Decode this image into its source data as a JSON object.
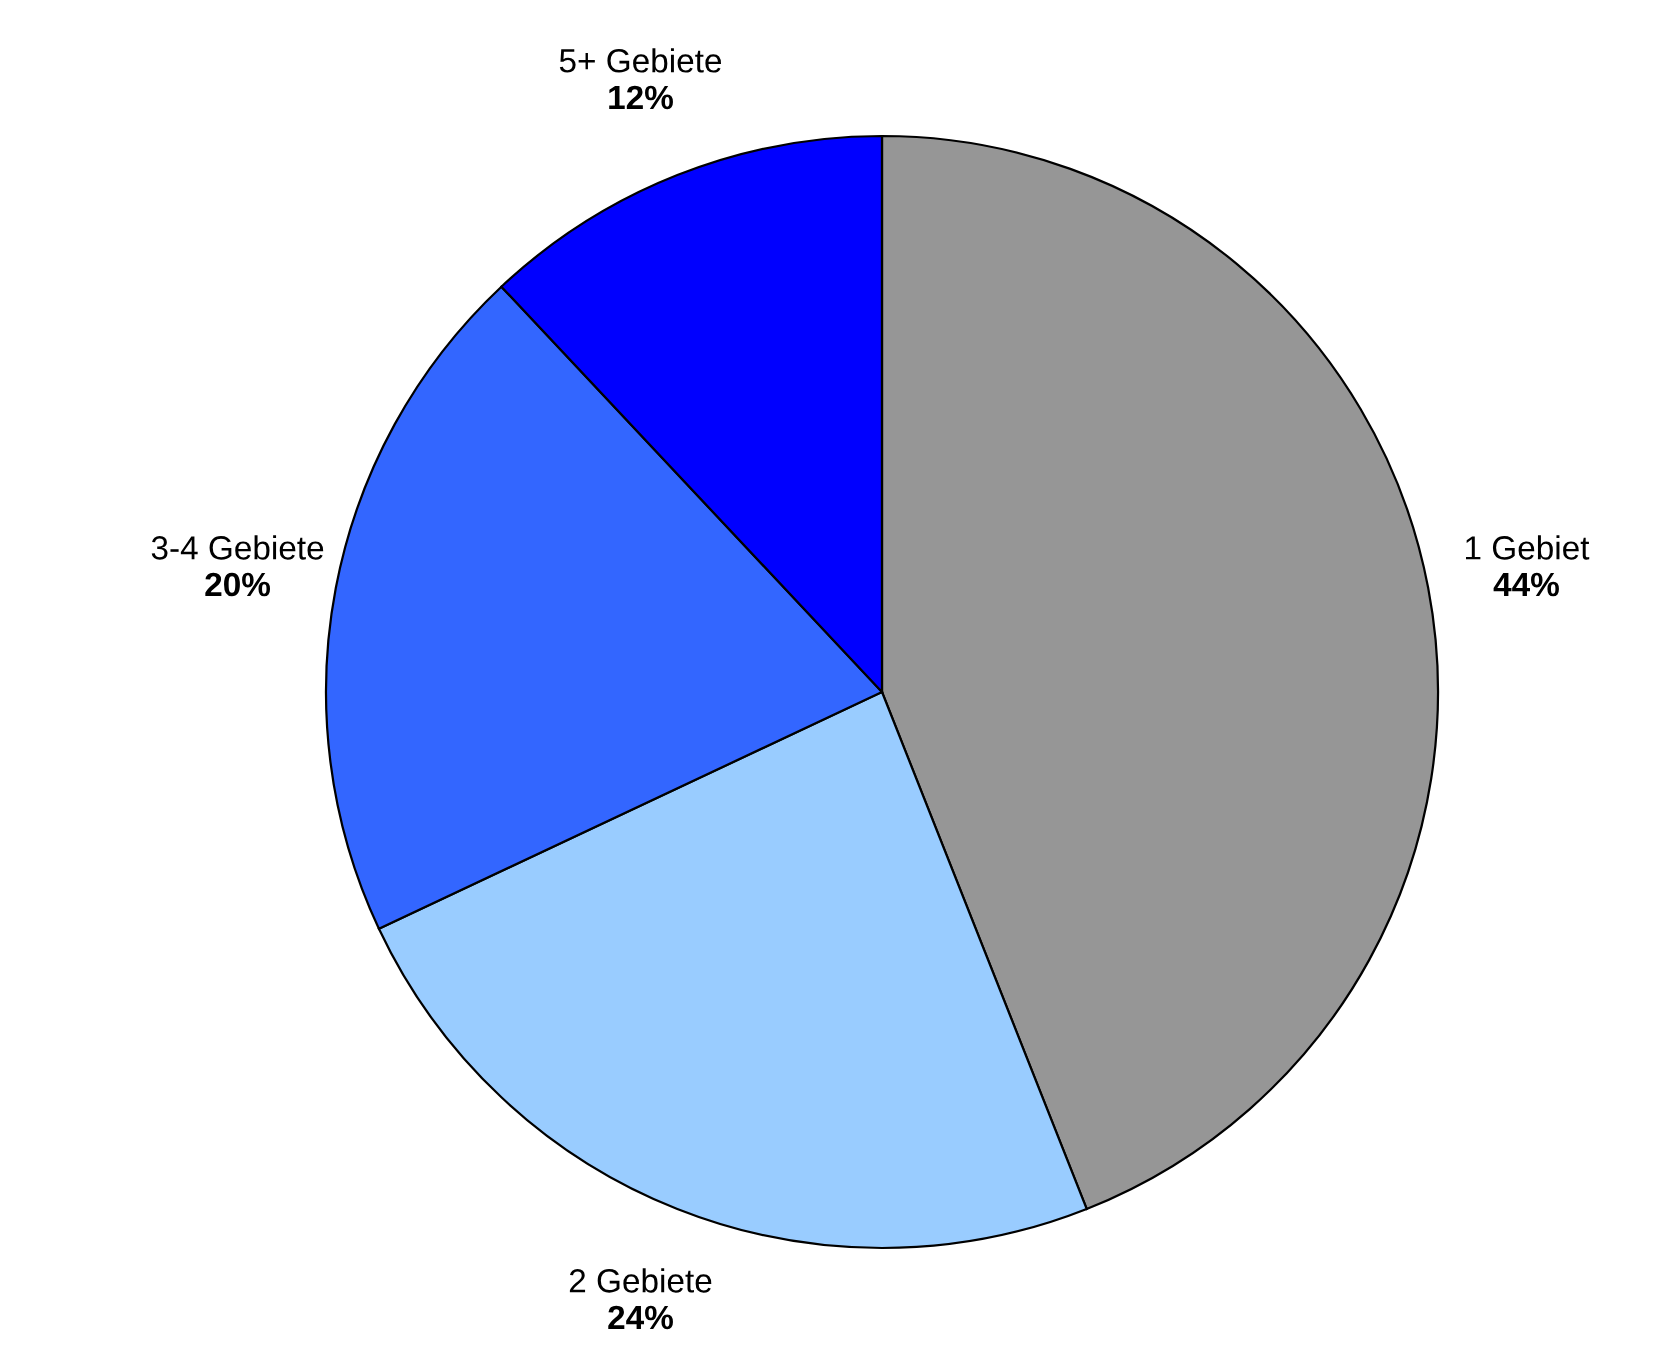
{
  "chart_data": {
    "type": "pie",
    "categories": [
      "1 Gebiet",
      "2 Gebiete",
      "3-4 Gebiete",
      "5+ Gebiete"
    ],
    "values": [
      44,
      24,
      20,
      12
    ],
    "value_labels": [
      "44%",
      "24%",
      "20%",
      "12%"
    ],
    "colors": [
      "#969696",
      "#99ccff",
      "#3366ff",
      "#0000ff"
    ]
  }
}
